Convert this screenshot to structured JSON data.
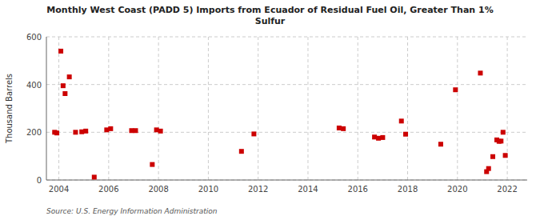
{
  "chart_data": {
    "type": "scatter",
    "title": "Monthly West Coast (PADD 5) Imports from Ecuador of Residual Fuel Oil, Greater Than 1%\nSulfur",
    "ylabel": "Thousand Barrels",
    "source": "Source: U.S. Energy Information Administration",
    "color": "#cc0000",
    "marker": "square",
    "grid": true,
    "xlim": [
      2003.5,
      2022.8
    ],
    "ylim": [
      0,
      600
    ],
    "xticks": [
      2004,
      2006,
      2008,
      2010,
      2012,
      2014,
      2016,
      2018,
      2020,
      2022
    ],
    "yticks": [
      0,
      200,
      400,
      600
    ],
    "x": [
      2003.83,
      2003.92,
      2004.08,
      2004.17,
      2004.25,
      2004.42,
      2004.67,
      2004.92,
      2005.08,
      2005.42,
      2005.92,
      2006.08,
      2006.92,
      2007.08,
      2007.75,
      2007.92,
      2008.08,
      2011.33,
      2011.83,
      2015.25,
      2015.42,
      2016.67,
      2016.83,
      2017.0,
      2017.75,
      2017.92,
      2019.33,
      2019.92,
      2020.92,
      2021.17,
      2021.25,
      2021.42,
      2021.58,
      2021.67,
      2021.75,
      2021.83,
      2021.92
    ],
    "values": [
      200,
      197,
      540,
      395,
      362,
      432,
      200,
      202,
      205,
      12,
      210,
      215,
      207,
      207,
      65,
      210,
      205,
      120,
      193,
      218,
      215,
      180,
      175,
      178,
      247,
      192,
      150,
      378,
      448,
      35,
      48,
      98,
      168,
      162,
      163,
      200,
      103
    ]
  }
}
